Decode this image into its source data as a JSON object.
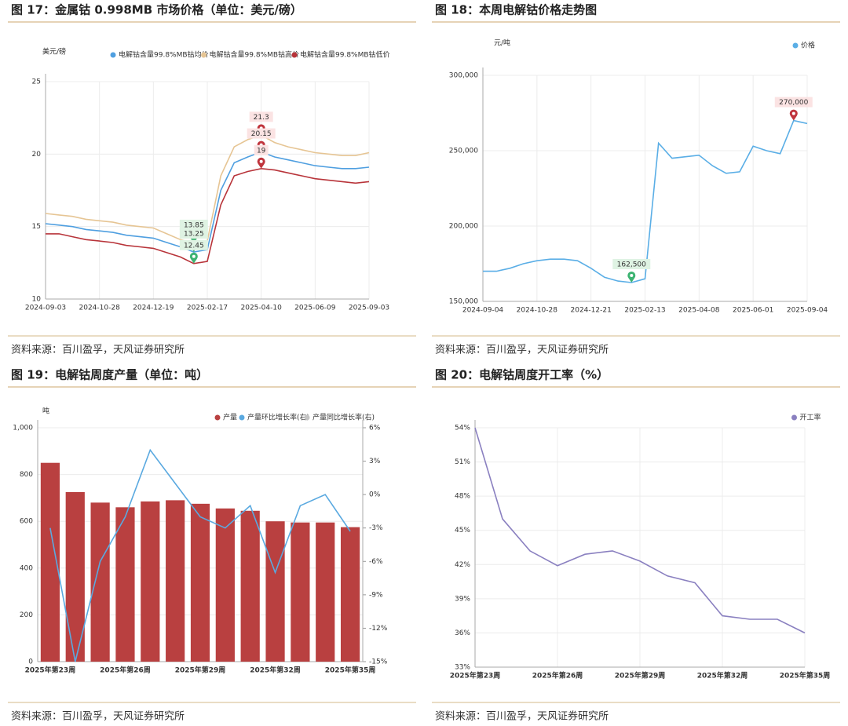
{
  "chart_data": [
    {
      "type": "line",
      "title": "图 17：金属钴 0.998MB 市场价格（单位：美元/磅）",
      "source": "资料来源：百川盈孚，天风证券研究所",
      "y_label": "美元/磅",
      "categories": [
        "2024-09-03",
        null,
        null,
        null,
        "2024-10-28",
        null,
        null,
        null,
        "2024-12-19",
        null,
        null,
        null,
        "2025-02-17",
        null,
        null,
        null,
        "2025-04-10",
        null,
        null,
        null,
        "2025-06-09",
        null,
        null,
        null,
        "2025-09-03"
      ],
      "series": [
        {
          "name": "电解钴含量99.8%MB钴均价",
          "color": "#4f9fe0",
          "values": [
            15.2,
            15.1,
            15.0,
            14.8,
            14.7,
            14.6,
            14.4,
            14.3,
            14.2,
            13.9,
            13.6,
            13.25,
            13.4,
            17.5,
            19.4,
            19.8,
            20.15,
            19.8,
            19.6,
            19.4,
            19.2,
            19.1,
            19.0,
            19.0,
            19.1
          ]
        },
        {
          "name": "电解钴含量99.8%MB钴高价",
          "color": "#e6c594",
          "values": [
            15.9,
            15.8,
            15.7,
            15.5,
            15.4,
            15.3,
            15.1,
            15.0,
            14.9,
            14.5,
            14.1,
            13.85,
            14.0,
            18.5,
            20.5,
            21.0,
            21.3,
            20.8,
            20.5,
            20.3,
            20.1,
            20.0,
            19.9,
            19.9,
            20.1
          ]
        },
        {
          "name": "电解钴含量99.8%MB钴低价",
          "color": "#b8343a",
          "values": [
            14.5,
            14.5,
            14.3,
            14.1,
            14.0,
            13.9,
            13.7,
            13.6,
            13.5,
            13.2,
            12.9,
            12.45,
            12.6,
            16.5,
            18.5,
            18.8,
            19,
            18.9,
            18.7,
            18.5,
            18.3,
            18.2,
            18.1,
            18.0,
            18.1
          ]
        }
      ],
      "markers": [
        {
          "series": 1,
          "index": 11,
          "color": "#3cb371"
        },
        {
          "series": 0,
          "index": 11,
          "color": "#3cb371"
        },
        {
          "series": 2,
          "index": 11,
          "color": "#3cb371"
        },
        {
          "series": 1,
          "index": 16,
          "color": "#c0343c"
        },
        {
          "series": 0,
          "index": 16,
          "color": "#c0343c"
        },
        {
          "series": 2,
          "index": 16,
          "color": "#c0343c"
        }
      ],
      "ylim": [
        10,
        25
      ],
      "yticks": [
        10,
        15,
        20,
        25
      ],
      "grid": true,
      "legend": "top"
    },
    {
      "type": "line",
      "title": "图 18：本周电解钴价格走势图",
      "source": "资料来源：百川盈孚，天风证券研究所",
      "y_label": "元/吨",
      "categories": [
        "2024-09-04",
        null,
        null,
        null,
        "2024-10-28",
        null,
        null,
        null,
        "2024-12-21",
        null,
        null,
        null,
        "2025-02-13",
        null,
        null,
        null,
        "2025-04-08",
        null,
        null,
        null,
        "2025-06-01",
        null,
        null,
        null,
        "2025-09-04"
      ],
      "series": [
        {
          "name": "价格",
          "color": "#5aaee6",
          "values": [
            170000,
            170000,
            172000,
            175000,
            177000,
            178000,
            178000,
            177000,
            172000,
            166000,
            163500,
            162500,
            165000,
            255000,
            245000,
            246000,
            247000,
            240000,
            235000,
            236000,
            253000,
            250000,
            248000,
            270000,
            268000
          ],
          "value_labels": [
            null,
            null,
            null,
            null,
            null,
            null,
            null,
            null,
            null,
            null,
            null,
            "162,500",
            null,
            null,
            null,
            null,
            null,
            null,
            null,
            null,
            null,
            null,
            null,
            "270,000",
            null
          ]
        }
      ],
      "markers": [
        {
          "series": 0,
          "index": 11,
          "color": "#3cb371"
        },
        {
          "series": 0,
          "index": 23,
          "color": "#c0343c"
        }
      ],
      "ylim": [
        150000,
        300000
      ],
      "yticks": [
        {
          "value": 150000,
          "label": "150,000"
        },
        {
          "value": 200000,
          "label": "200,000"
        },
        {
          "value": 250000,
          "label": "250,000"
        },
        {
          "value": 300000,
          "label": "300,000"
        }
      ],
      "grid": true,
      "legend": "top-right"
    },
    {
      "type": "bar",
      "title": "图 19：电解钴周度产量（单位：吨）",
      "source": "资料来源：百川盈孚，天风证券研究所",
      "y_label": "吨",
      "categories": [
        "2025年第23周",
        null,
        null,
        "2025年第26周",
        null,
        null,
        "2025年第29周",
        null,
        null,
        "2025年第32周",
        null,
        null,
        "2025年第35周"
      ],
      "series": [
        {
          "name": "产量",
          "color": "#b94040",
          "values": [
            850,
            725,
            680,
            660,
            685,
            690,
            675,
            655,
            645,
            600,
            595,
            595,
            575
          ]
        },
        {
          "name": "产量环比增长率(右)",
          "color": "#5aa9e0",
          "axis": "y2",
          "values": [
            -3,
            -15,
            -6,
            -2,
            4,
            1,
            -2,
            -3,
            -1,
            -7,
            -1,
            0,
            -3.3
          ]
        },
        {
          "name": "产量同比增长率(右)",
          "color": "#c4c4c4",
          "axis": "y2",
          "values": [
            null,
            null,
            null,
            null,
            null,
            null,
            null,
            null,
            null,
            null,
            null,
            null,
            null
          ]
        }
      ],
      "ylim": [
        0,
        1000
      ],
      "yticks": [
        0,
        200,
        400,
        600,
        800,
        {
          "value": 1000,
          "label": "1,000"
        }
      ],
      "y2lim": [
        -15,
        6
      ],
      "y2ticks": [
        {
          "value": -15,
          "label": "-15%"
        },
        {
          "value": -12,
          "label": "-12%"
        },
        {
          "value": -9,
          "label": "-9%"
        },
        {
          "value": -6,
          "label": "-6%"
        },
        {
          "value": -3,
          "label": "-3%"
        },
        {
          "value": 0,
          "label": "0%"
        },
        {
          "value": 3,
          "label": "3%"
        },
        {
          "value": 6,
          "label": "6%"
        }
      ],
      "grid": true,
      "legend": "top-right"
    },
    {
      "type": "line",
      "title": "图 20：电解钴周度开工率（%）",
      "source": "资料来源：百川盈孚，天风证券研究所",
      "categories": [
        "2025年第23周",
        null,
        null,
        "2025年第26周",
        null,
        null,
        "2025年第29周",
        null,
        null,
        "2025年第32周",
        null,
        null,
        "2025年第35周"
      ],
      "series": [
        {
          "name": "开工率",
          "color": "#8a80c0",
          "values": [
            54,
            46,
            43.2,
            41.9,
            42.9,
            43.2,
            42.3,
            41.0,
            40.4,
            37.5,
            37.2,
            37.2,
            36.0
          ]
        }
      ],
      "ylim": [
        33,
        54
      ],
      "yticks": [
        {
          "value": 33,
          "label": "33%"
        },
        {
          "value": 36,
          "label": "36%"
        },
        {
          "value": 39,
          "label": "39%"
        },
        {
          "value": 42,
          "label": "42%"
        },
        {
          "value": 45,
          "label": "45%"
        },
        {
          "value": 48,
          "label": "48%"
        },
        {
          "value": 51,
          "label": "51%"
        },
        {
          "value": 54,
          "label": "54%"
        }
      ],
      "grid": true,
      "legend": "top-right"
    }
  ]
}
